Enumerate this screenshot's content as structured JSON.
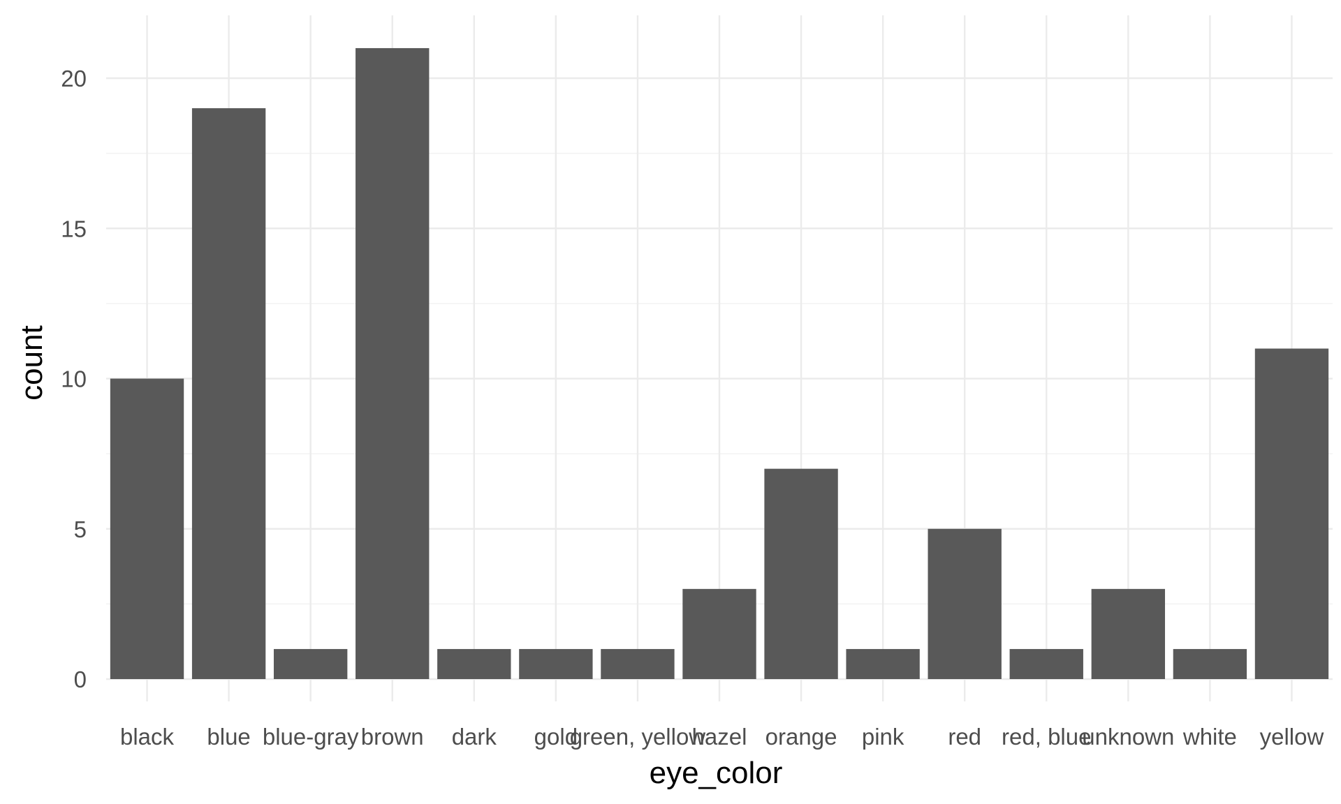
{
  "chart_data": {
    "type": "bar",
    "xlabel": "eye_color",
    "ylabel": "count",
    "categories": [
      "black",
      "blue",
      "blue-gray",
      "brown",
      "dark",
      "gold",
      "green, yellow",
      "hazel",
      "orange",
      "pink",
      "red",
      "red, blue",
      "unknown",
      "white",
      "yellow"
    ],
    "values": [
      10,
      19,
      1,
      21,
      1,
      1,
      1,
      3,
      7,
      1,
      5,
      1,
      3,
      1,
      11
    ],
    "ylim": [
      0,
      22
    ],
    "yticks": [
      0,
      5,
      10,
      15,
      20
    ],
    "grid": true,
    "legend": "none",
    "colors": {
      "bar": "#595959",
      "grid_major": "#ebebeb",
      "grid_minor": "#f2f2f2",
      "tick_text": "#4d4d4d",
      "title_text": "#000000",
      "background": "#ffffff"
    }
  }
}
